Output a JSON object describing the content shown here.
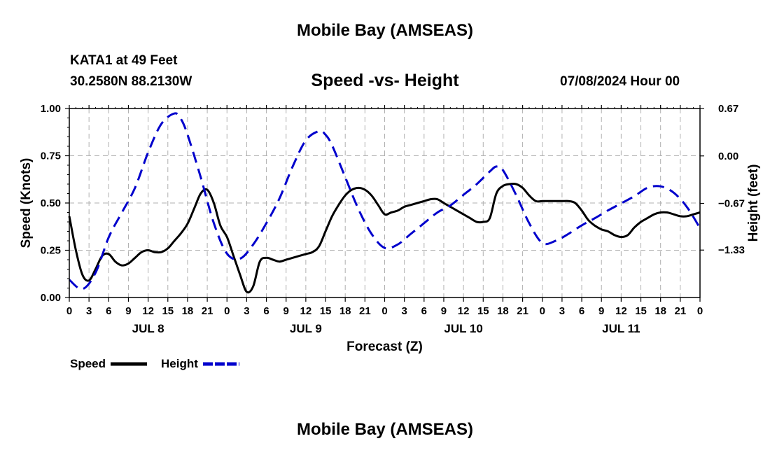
{
  "header": {
    "title": "Mobile Bay (AMSEAS)",
    "station": "KATA1 at 49 Feet",
    "coords": "30.2580N  88.2130W",
    "subtitle": "Speed -vs- Height",
    "datetime": "07/08/2024 Hour 00"
  },
  "footer": {
    "title": "Mobile Bay (AMSEAS)"
  },
  "chart_data": {
    "type": "line",
    "title": "Speed -vs- Height",
    "xlabel": "Forecast (Z)",
    "ylabel_left": "Speed (Knots)",
    "ylabel_right": "Height (feet)",
    "xlim": [
      0,
      96
    ],
    "ylim_left": [
      0,
      1.0
    ],
    "ylim_right": [
      -2.0,
      0.67
    ],
    "grid": true,
    "left_ticks": [
      {
        "v": 0,
        "label": "0.00"
      },
      {
        "v": 0.25,
        "label": "0.25"
      },
      {
        "v": 0.5,
        "label": "0.50"
      },
      {
        "v": 0.75,
        "label": "0.75"
      },
      {
        "v": 1.0,
        "label": "1.00"
      }
    ],
    "right_ticks": [
      {
        "v": 0.67,
        "label": "0.67"
      },
      {
        "v": 0.0,
        "label": "0.00"
      },
      {
        "v": -0.67,
        "label": "−0.67"
      },
      {
        "v": -1.33,
        "label": "−1.33"
      }
    ],
    "x_tick_labels": [
      "0",
      "3",
      "6",
      "9",
      "12",
      "15",
      "18",
      "21",
      "0",
      "3",
      "6",
      "9",
      "12",
      "15",
      "18",
      "21",
      "0",
      "3",
      "6",
      "9",
      "12",
      "15",
      "18",
      "21",
      "0",
      "3",
      "6",
      "9",
      "12",
      "15",
      "18",
      "21",
      "0"
    ],
    "day_labels": [
      {
        "label": "JUL 8",
        "hour": 12
      },
      {
        "label": "JUL 9",
        "hour": 36
      },
      {
        "label": "JUL 10",
        "hour": 60
      },
      {
        "label": "JUL 11",
        "hour": 84
      }
    ],
    "series": [
      {
        "name": "Speed",
        "axis": "left",
        "color": "#000000",
        "style": "solid",
        "x": [
          0,
          1,
          2,
          3,
          4,
          5,
          6,
          7,
          8,
          9,
          10,
          11,
          12,
          13,
          14,
          15,
          16,
          17,
          18,
          19,
          20,
          21,
          22,
          23,
          24,
          25,
          26,
          27,
          28,
          29,
          30,
          31,
          32,
          33,
          34,
          35,
          36,
          37,
          38,
          39,
          40,
          41,
          42,
          43,
          44,
          45,
          46,
          47,
          48,
          49,
          50,
          51,
          52,
          53,
          54,
          55,
          56,
          57,
          58,
          59,
          60,
          61,
          62,
          63,
          64,
          65,
          66,
          67,
          68,
          69,
          70,
          71,
          72,
          73,
          74,
          75,
          76,
          77,
          78,
          79,
          80,
          81,
          82,
          83,
          84,
          85,
          86,
          87,
          88,
          89,
          90,
          91,
          92,
          93,
          94,
          95,
          96
        ],
        "values": [
          0.43,
          0.25,
          0.12,
          0.09,
          0.15,
          0.22,
          0.23,
          0.19,
          0.17,
          0.18,
          0.21,
          0.24,
          0.25,
          0.24,
          0.24,
          0.26,
          0.3,
          0.34,
          0.39,
          0.47,
          0.55,
          0.57,
          0.5,
          0.38,
          0.32,
          0.22,
          0.12,
          0.03,
          0.06,
          0.19,
          0.21,
          0.2,
          0.19,
          0.2,
          0.21,
          0.22,
          0.23,
          0.24,
          0.27,
          0.35,
          0.43,
          0.49,
          0.54,
          0.57,
          0.58,
          0.57,
          0.54,
          0.49,
          0.44,
          0.45,
          0.46,
          0.48,
          0.49,
          0.5,
          0.51,
          0.52,
          0.52,
          0.5,
          0.48,
          0.46,
          0.44,
          0.42,
          0.4,
          0.4,
          0.42,
          0.55,
          0.59,
          0.6,
          0.6,
          0.58,
          0.54,
          0.51,
          0.51,
          0.51,
          0.51,
          0.51,
          0.51,
          0.5,
          0.46,
          0.41,
          0.38,
          0.36,
          0.35,
          0.33,
          0.32,
          0.33,
          0.37,
          0.4,
          0.42,
          0.44,
          0.45,
          0.45,
          0.44,
          0.43,
          0.43,
          0.44,
          0.45
        ]
      },
      {
        "name": "Height",
        "axis": "right",
        "color": "#0000cc",
        "style": "dashed",
        "x": [
          0,
          2,
          4,
          6,
          8,
          10,
          12,
          14,
          16,
          17,
          18,
          20,
          22,
          24,
          26,
          28,
          30,
          32,
          34,
          36,
          38,
          39,
          40,
          42,
          44,
          46,
          48,
          50,
          52,
          54,
          56,
          58,
          60,
          62,
          64,
          65,
          66,
          68,
          70,
          72,
          74,
          76,
          78,
          80,
          82,
          84,
          86,
          88,
          90,
          92,
          94,
          96
        ],
        "values": [
          -1.75,
          -1.88,
          -1.65,
          -1.15,
          -0.8,
          -0.45,
          0.05,
          0.45,
          0.6,
          0.52,
          0.3,
          -0.3,
          -0.95,
          -1.38,
          -1.45,
          -1.25,
          -0.95,
          -0.6,
          -0.15,
          0.22,
          0.35,
          0.3,
          0.15,
          -0.3,
          -0.75,
          -1.1,
          -1.3,
          -1.25,
          -1.1,
          -0.95,
          -0.8,
          -0.7,
          -0.55,
          -0.4,
          -0.22,
          -0.15,
          -0.2,
          -0.55,
          -0.95,
          -1.23,
          -1.2,
          -1.1,
          -0.98,
          -0.88,
          -0.77,
          -0.67,
          -0.57,
          -0.45,
          -0.43,
          -0.52,
          -0.72,
          -1.02
        ]
      }
    ],
    "legend": [
      {
        "label": "Speed",
        "color": "#000000",
        "style": "solid"
      },
      {
        "label": "Height",
        "color": "#0000cc",
        "style": "dashed"
      }
    ]
  }
}
